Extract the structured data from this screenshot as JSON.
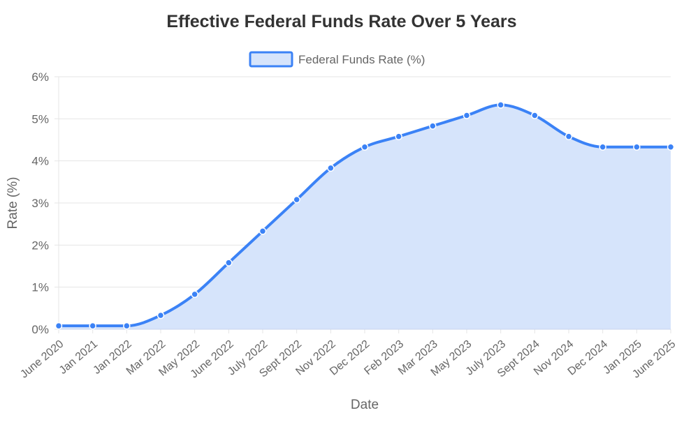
{
  "chart_data": {
    "type": "area",
    "title": "Effective Federal Funds Rate Over 5 Years",
    "xlabel": "Date",
    "ylabel": "Rate (%)",
    "ylim": [
      0,
      6
    ],
    "y_tick_step": 1,
    "y_tick_suffix": "%",
    "grid": true,
    "legend_position": "top-center",
    "categories": [
      "June 2020",
      "Jan 2021",
      "Jan 2022",
      "Mar 2022",
      "May 2022",
      "June 2022",
      "July 2022",
      "Sept 2022",
      "Nov 2022",
      "Dec 2022",
      "Feb 2023",
      "Mar 2023",
      "May 2023",
      "July 2023",
      "Sept 2024",
      "Nov 2024",
      "Dec 2024",
      "Jan 2025",
      "June 2025"
    ],
    "series": [
      {
        "name": "Federal Funds Rate (%)",
        "values": [
          0.08,
          0.08,
          0.08,
          0.33,
          0.83,
          1.58,
          2.33,
          3.08,
          3.83,
          4.33,
          4.58,
          4.83,
          5.08,
          5.33,
          5.08,
          4.58,
          4.33,
          4.33,
          4.33
        ],
        "line_color": "#3b82f6",
        "fill_color": "#d6e4fb"
      }
    ]
  }
}
